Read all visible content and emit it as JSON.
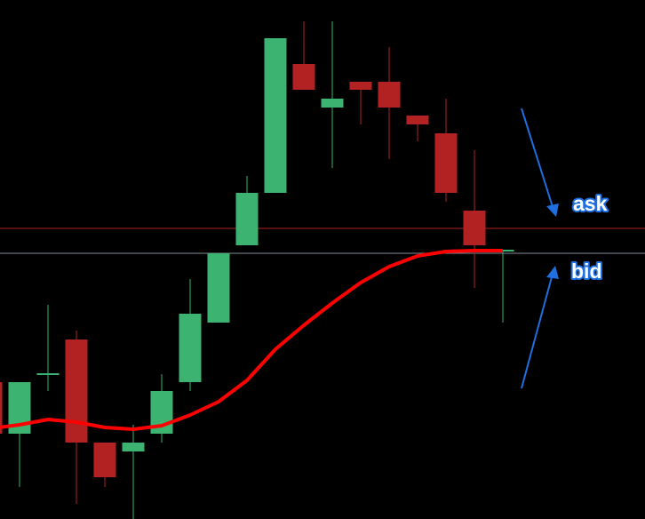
{
  "chart_data": {
    "type": "candlestick",
    "open": [
      154,
      96,
      163,
      202,
      86,
      76,
      96,
      154,
      221,
      308,
      367,
      512,
      463,
      492,
      492,
      454,
      434,
      347,
      302
    ],
    "high": [
      154,
      154,
      241,
      212,
      86,
      106,
      163,
      270,
      299,
      386,
      541,
      560,
      560,
      492,
      531,
      454,
      473,
      415,
      302
    ],
    "low": [
      96,
      36,
      144,
      17,
      36,
      0,
      86,
      144,
      221,
      308,
      367,
      483,
      395,
      444,
      405,
      425,
      357,
      260,
      221
    ],
    "close": [
      96,
      154,
      163,
      86,
      47,
      86,
      144,
      231,
      299,
      367,
      541,
      483,
      473,
      483,
      463,
      444,
      367,
      308,
      302
    ],
    "up_color": "#3cb371",
    "down_color": "#b22222",
    "moving_average": {
      "color": "#ff0000",
      "values": [
        102,
        106,
        112,
        109,
        103,
        101,
        105,
        117,
        132,
        156,
        191,
        218,
        243,
        266,
        284,
        296,
        301,
        302,
        302
      ]
    },
    "ask": {
      "label": "ask",
      "value": 327,
      "color": "#b22222"
    },
    "bid": {
      "label": "bid",
      "value": 299,
      "color": "#7f8c99"
    },
    "ylim": [
      0,
      584
    ]
  }
}
